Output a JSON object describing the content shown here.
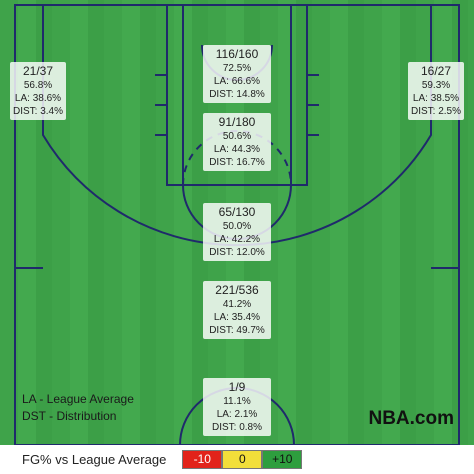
{
  "zones": [
    {
      "shots": "116/160",
      "fg": "72.5%",
      "la": "LA: 66.6%",
      "dist": "DIST: 14.8%"
    },
    {
      "shots": "21/37",
      "fg": "56.8%",
      "la": "LA: 38.6%",
      "dist": "DIST: 3.4%"
    },
    {
      "shots": "16/27",
      "fg": "59.3%",
      "la": "LA: 38.5%",
      "dist": "DIST: 2.5%"
    },
    {
      "shots": "91/180",
      "fg": "50.6%",
      "la": "LA: 44.3%",
      "dist": "DIST: 16.7%"
    },
    {
      "shots": "65/130",
      "fg": "50.0%",
      "la": "LA: 42.2%",
      "dist": "DIST: 12.0%"
    },
    {
      "shots": "221/536",
      "fg": "41.2%",
      "la": "LA: 35.4%",
      "dist": "DIST: 49.7%"
    },
    {
      "shots": "1/9",
      "fg": "11.1%",
      "la": "LA: 2.1%",
      "dist": "DIST: 0.8%"
    }
  ],
  "notes": [
    "LA - League Average",
    "DST - Distribution"
  ],
  "brand": "NBA.com",
  "scale": {
    "title": "FG% vs League Average",
    "steps": [
      {
        "label": "-10",
        "color": "#e2231a"
      },
      {
        "label": "0",
        "color": "#f2df3a"
      },
      {
        "label": "+10",
        "color": "#2e9e3e"
      }
    ]
  }
}
